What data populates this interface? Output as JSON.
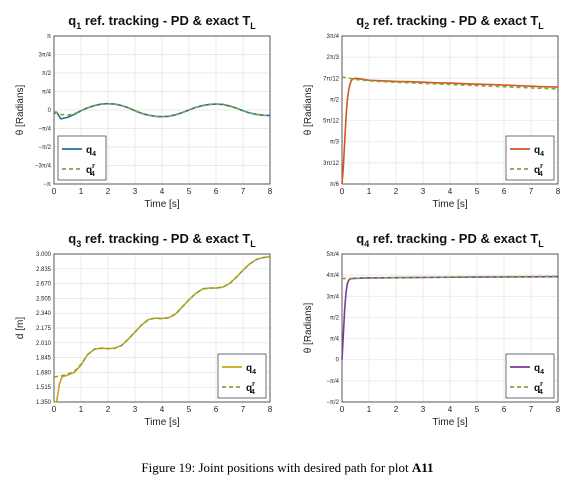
{
  "caption": {
    "prefix": "Figure 19: Joint positions with desired path for plot",
    "bold": "A11"
  },
  "chart_data": [
    {
      "type": "line",
      "title": {
        "base": "q",
        "sub": "1",
        "rest": " ref. tracking - PD & exact T",
        "sub2": "L"
      },
      "xlabel": "Time [s]",
      "ylabel": "θ [Radians]",
      "xlim": [
        0,
        8
      ],
      "xticks": [
        "0",
        "1",
        "2",
        "3",
        "4",
        "5",
        "6",
        "7",
        "8"
      ],
      "ylim": [
        -1,
        1
      ],
      "yticks": [
        {
          "v": 1,
          "t": "π"
        },
        {
          "v": 0.75,
          "t": "3π/4"
        },
        {
          "v": 0.5,
          "t": "π/2"
        },
        {
          "v": 0.25,
          "t": "π/4"
        },
        {
          "v": 0,
          "t": "0"
        },
        {
          "v": -0.25,
          "t": "−π/4"
        },
        {
          "v": -0.5,
          "t": "−π/2"
        },
        {
          "v": -0.75,
          "t": "−3π/4"
        },
        {
          "v": -1,
          "t": "−π"
        }
      ],
      "grid": true,
      "legend_position": "lower-left",
      "series": [
        {
          "name": "q4",
          "name_base": "q",
          "name_sub": "4",
          "name_sup": "",
          "color": "#1f6f9f",
          "dash": false,
          "x": [
            0,
            0.1,
            0.25,
            0.5,
            0.75,
            1,
            1.25,
            1.5,
            1.75,
            2,
            2.25,
            2.5,
            2.75,
            3,
            3.25,
            3.5,
            3.75,
            4,
            4.25,
            4.5,
            4.75,
            5,
            5.25,
            5.5,
            5.75,
            6,
            6.25,
            6.5,
            6.75,
            7,
            7.25,
            7.5,
            7.75,
            8
          ],
          "y": [
            -0.05,
            -0.03,
            -0.12,
            -0.1,
            -0.06,
            -0.01,
            0.03,
            0.06,
            0.08,
            0.085,
            0.08,
            0.06,
            0.03,
            -0.01,
            -0.045,
            -0.07,
            -0.085,
            -0.09,
            -0.085,
            -0.065,
            -0.035,
            0,
            0.035,
            0.06,
            0.075,
            0.08,
            0.075,
            0.055,
            0.025,
            -0.01,
            -0.04,
            -0.06,
            -0.07,
            -0.075
          ]
        },
        {
          "name": "q4r",
          "name_base": "q",
          "name_sub": "4",
          "name_sup": "r",
          "color": "#8aa33a",
          "dash": true,
          "x": [
            0,
            0.25,
            0.5,
            0.75,
            1,
            1.25,
            1.5,
            1.75,
            2,
            2.25,
            2.5,
            2.75,
            3,
            3.25,
            3.5,
            3.75,
            4,
            4.25,
            4.5,
            4.75,
            5,
            5.25,
            5.5,
            5.75,
            6,
            6.25,
            6.5,
            6.75,
            7,
            7.25,
            7.5,
            7.75,
            8
          ],
          "y": [
            -0.02,
            -0.06,
            -0.07,
            -0.05,
            -0.01,
            0.03,
            0.06,
            0.08,
            0.085,
            0.08,
            0.06,
            0.03,
            -0.01,
            -0.045,
            -0.07,
            -0.085,
            -0.09,
            -0.085,
            -0.065,
            -0.035,
            0,
            0.035,
            0.06,
            0.075,
            0.08,
            0.075,
            0.055,
            0.025,
            -0.01,
            -0.04,
            -0.06,
            -0.07,
            -0.075
          ]
        }
      ]
    },
    {
      "type": "line",
      "title": {
        "base": "q",
        "sub": "2",
        "rest": " ref. tracking - PD & exact T",
        "sub2": "L"
      },
      "xlabel": "Time [s]",
      "ylabel": "θ [Radians]",
      "xlim": [
        0,
        8
      ],
      "xticks": [
        "0",
        "1",
        "2",
        "3",
        "4",
        "5",
        "6",
        "7",
        "8"
      ],
      "ylim": [
        30,
        135
      ],
      "yticks": [
        {
          "v": 135,
          "t": "3π/4"
        },
        {
          "v": 120,
          "t": "2π/3"
        },
        {
          "v": 105,
          "t": "7π/12"
        },
        {
          "v": 90,
          "t": "π/2"
        },
        {
          "v": 75,
          "t": "5π/12"
        },
        {
          "v": 60,
          "t": "π/3"
        },
        {
          "v": 45,
          "t": "3π/12"
        },
        {
          "v": 30,
          "t": "π/6"
        }
      ],
      "grid": true,
      "legend_position": "lower-right",
      "series": [
        {
          "name": "q4",
          "name_base": "q",
          "name_sub": "4",
          "name_sup": "",
          "color": "#d2561e",
          "dash": false,
          "x": [
            0,
            0.05,
            0.1,
            0.15,
            0.2,
            0.25,
            0.3,
            0.35,
            0.4,
            0.5,
            0.6,
            0.8,
            1,
            1.5,
            2,
            2.5,
            3,
            3.5,
            4,
            4.5,
            5,
            5.5,
            6,
            6.5,
            7,
            7.5,
            8
          ],
          "y": [
            30,
            42,
            60,
            78,
            90,
            97,
            101,
            103.5,
            104.5,
            105,
            104.8,
            104.2,
            103.6,
            103.2,
            102.8,
            102.6,
            102.2,
            101.8,
            101.6,
            101.2,
            100.8,
            100.6,
            100.2,
            99.8,
            99.4,
            99.0,
            98.8
          ]
        },
        {
          "name": "q4r",
          "name_base": "q",
          "name_sub": "4",
          "name_sup": "r",
          "color": "#8aa33a",
          "dash": true,
          "x": [
            0,
            0.5,
            1,
            1.5,
            2,
            2.5,
            3,
            3.5,
            4,
            4.5,
            5,
            5.5,
            6,
            6.5,
            7,
            7.5,
            8
          ],
          "y": [
            106,
            104.2,
            103.2,
            102.6,
            102.2,
            101.8,
            101.4,
            101.0,
            100.6,
            100.2,
            99.8,
            99.4,
            99.0,
            98.6,
            98.2,
            97.8,
            97.4
          ]
        }
      ]
    },
    {
      "type": "line",
      "title": {
        "base": "q",
        "sub": "3",
        "rest": " ref. tracking - PD & exact T",
        "sub2": "L"
      },
      "xlabel": "Time [s]",
      "ylabel": "d [m]",
      "xlim": [
        0,
        8
      ],
      "xticks": [
        "0",
        "1",
        "2",
        "3",
        "4",
        "5",
        "6",
        "7",
        "8"
      ],
      "ylim": [
        1.35,
        3.0
      ],
      "yticks": [
        {
          "v": 3.0,
          "t": "3.000"
        },
        {
          "v": 2.835,
          "t": "2.835"
        },
        {
          "v": 2.67,
          "t": "2.670"
        },
        {
          "v": 2.505,
          "t": "2.505"
        },
        {
          "v": 2.34,
          "t": "2.340"
        },
        {
          "v": 2.175,
          "t": "2.175"
        },
        {
          "v": 2.01,
          "t": "2.010"
        },
        {
          "v": 1.845,
          "t": "1.845"
        },
        {
          "v": 1.68,
          "t": "1.680"
        },
        {
          "v": 1.515,
          "t": "1.515"
        },
        {
          "v": 1.35,
          "t": "1.350"
        }
      ],
      "grid": true,
      "legend_position": "lower-right",
      "series": [
        {
          "name": "q4",
          "name_base": "q",
          "name_sub": "4",
          "name_sup": "",
          "color": "#c8a41e",
          "dash": false,
          "x": [
            0,
            0.1,
            0.15,
            0.2,
            0.3,
            0.5,
            0.75,
            1,
            1.25,
            1.5,
            1.75,
            2,
            2.25,
            2.5,
            2.75,
            3,
            3.25,
            3.5,
            3.75,
            4,
            4.25,
            4.5,
            4.75,
            5,
            5.25,
            5.5,
            5.75,
            6,
            6.25,
            6.5,
            6.75,
            7,
            7.25,
            7.5,
            7.75,
            8
          ],
          "y": [
            1.35,
            1.36,
            1.45,
            1.55,
            1.63,
            1.65,
            1.68,
            1.76,
            1.88,
            1.94,
            1.95,
            1.945,
            1.95,
            1.98,
            2.05,
            2.13,
            2.21,
            2.27,
            2.285,
            2.28,
            2.29,
            2.33,
            2.41,
            2.49,
            2.56,
            2.61,
            2.62,
            2.62,
            2.63,
            2.67,
            2.74,
            2.82,
            2.89,
            2.94,
            2.96,
            2.97
          ]
        },
        {
          "name": "q4r",
          "name_base": "q",
          "name_sub": "4",
          "name_sup": "r",
          "color": "#8aa33a",
          "dash": true,
          "x": [
            0,
            0.25,
            0.5,
            0.75,
            1,
            1.25,
            1.5,
            1.75,
            2,
            2.25,
            2.5,
            2.75,
            3,
            3.25,
            3.5,
            3.75,
            4,
            4.25,
            4.5,
            4.75,
            5,
            5.25,
            5.5,
            5.75,
            6,
            6.25,
            6.5,
            6.75,
            7,
            7.25,
            7.5,
            7.75,
            8
          ],
          "y": [
            1.63,
            1.64,
            1.66,
            1.69,
            1.77,
            1.88,
            1.94,
            1.95,
            1.945,
            1.95,
            1.98,
            2.05,
            2.13,
            2.21,
            2.27,
            2.285,
            2.28,
            2.29,
            2.33,
            2.41,
            2.49,
            2.56,
            2.61,
            2.62,
            2.62,
            2.63,
            2.67,
            2.74,
            2.82,
            2.89,
            2.94,
            2.96,
            2.97
          ]
        }
      ]
    },
    {
      "type": "line",
      "title": {
        "base": "q",
        "sub": "4",
        "rest": " ref. tracking - PD & exact T",
        "sub2": "L"
      },
      "xlabel": "Time [s]",
      "ylabel": "θ [Radians]",
      "xlim": [
        0,
        8
      ],
      "xticks": [
        "0",
        "1",
        "2",
        "3",
        "4",
        "5",
        "6",
        "7",
        "8"
      ],
      "ylim": [
        -0.5,
        1.25
      ],
      "yticks": [
        {
          "v": 1.25,
          "t": "5π/4"
        },
        {
          "v": 1.0,
          "t": "4π/4"
        },
        {
          "v": 0.75,
          "t": "3π/4"
        },
        {
          "v": 0.5,
          "t": "π/2"
        },
        {
          "v": 0.25,
          "t": "π/4"
        },
        {
          "v": 0,
          "t": "0"
        },
        {
          "v": -0.25,
          "t": "−π/4"
        },
        {
          "v": -0.5,
          "t": "−π/2"
        }
      ],
      "grid": true,
      "legend_position": "lower-right",
      "series": [
        {
          "name": "q4",
          "name_base": "q",
          "name_sub": "4",
          "name_sup": "",
          "color": "#7a3a94",
          "dash": false,
          "x": [
            0,
            0.05,
            0.1,
            0.15,
            0.2,
            0.25,
            0.3,
            0.4,
            0.5,
            0.75,
            1,
            2,
            3,
            4,
            5,
            6,
            7,
            8
          ],
          "y": [
            0,
            0.3,
            0.6,
            0.8,
            0.9,
            0.94,
            0.955,
            0.96,
            0.962,
            0.965,
            0.967,
            0.97,
            0.973,
            0.975,
            0.977,
            0.979,
            0.98,
            0.982
          ]
        },
        {
          "name": "q4r",
          "name_base": "q",
          "name_sub": "4",
          "name_sup": "r",
          "color": "#8aa33a",
          "dash": true,
          "x": [
            0,
            0.5,
            1,
            2,
            3,
            4,
            5,
            6,
            7,
            8
          ],
          "y": [
            0.96,
            0.962,
            0.965,
            0.97,
            0.974,
            0.977,
            0.979,
            0.981,
            0.983,
            0.985
          ]
        }
      ]
    }
  ]
}
